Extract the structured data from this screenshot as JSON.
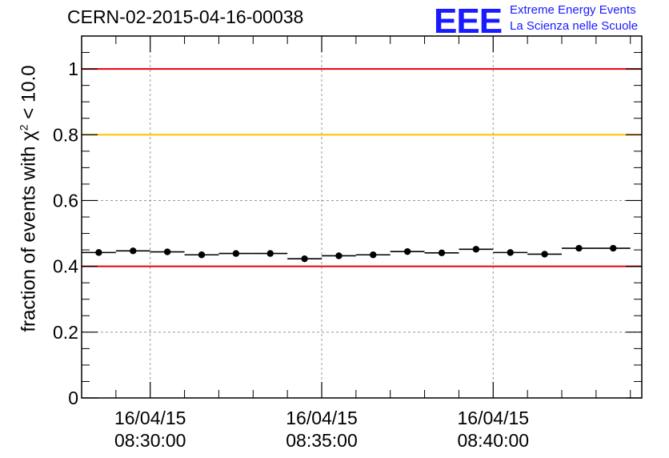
{
  "header": {
    "title": "CERN-02-2015-04-16-00038",
    "logo_text": "EEE",
    "logo_line1": "Extreme Energy Events",
    "logo_line2": "La Scienza nelle Scuole"
  },
  "colors": {
    "logo": "#1a1aff",
    "red_line": "#e8000b",
    "yellow_line": "#ffc000",
    "points": "#000000",
    "grid": "#999999"
  },
  "chart_data": {
    "type": "scatter",
    "title": "CERN-02-2015-04-16-00038",
    "ylabel_prefix": "fraction of events with ",
    "ylabel_symbol": "χ",
    "ylabel_sup": "2",
    "ylabel_suffix": " < 10.0",
    "ylim": [
      0,
      1.1
    ],
    "xlim": [
      "08:28:00",
      "08:44:20"
    ],
    "y_ticks": [
      0,
      0.2,
      0.4,
      0.6,
      0.8,
      1
    ],
    "y_tick_labels": [
      "0",
      "0.2",
      "0.4",
      "0.6",
      "0.8",
      "1"
    ],
    "x_major_ticks": [
      "08:30:00",
      "08:35:00",
      "08:40:00"
    ],
    "x_tick_labels": [
      {
        "date": "16/04/15",
        "time": "08:30:00"
      },
      {
        "date": "16/04/15",
        "time": "08:35:00"
      },
      {
        "date": "16/04/15",
        "time": "08:40:00"
      }
    ],
    "grid": true,
    "reference_lines": [
      {
        "y": 1.0,
        "color": "#e8000b"
      },
      {
        "y": 0.8,
        "color": "#ffc000"
      },
      {
        "y": 0.4,
        "color": "#e8000b"
      }
    ],
    "bin_width_s": 60,
    "points": [
      {
        "t": "08:28:30",
        "y": 0.442
      },
      {
        "t": "08:29:30",
        "y": 0.447
      },
      {
        "t": "08:30:30",
        "y": 0.444
      },
      {
        "t": "08:31:30",
        "y": 0.435
      },
      {
        "t": "08:32:30",
        "y": 0.439
      },
      {
        "t": "08:33:30",
        "y": 0.439
      },
      {
        "t": "08:34:30",
        "y": 0.423
      },
      {
        "t": "08:35:30",
        "y": 0.432
      },
      {
        "t": "08:36:30",
        "y": 0.435
      },
      {
        "t": "08:37:30",
        "y": 0.445
      },
      {
        "t": "08:38:30",
        "y": 0.441
      },
      {
        "t": "08:39:30",
        "y": 0.452
      },
      {
        "t": "08:40:30",
        "y": 0.442
      },
      {
        "t": "08:41:30",
        "y": 0.437
      },
      {
        "t": "08:42:30",
        "y": 0.455
      },
      {
        "t": "08:43:30",
        "y": 0.455
      }
    ]
  }
}
